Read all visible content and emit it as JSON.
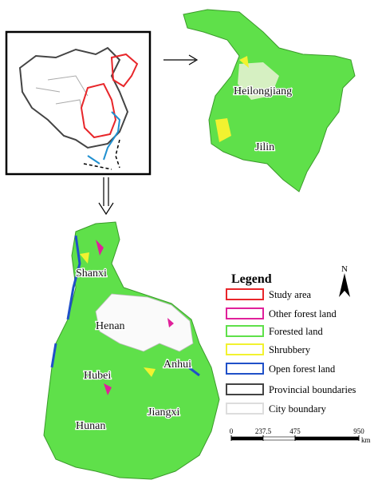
{
  "northeast_labels": [
    "Heilongjiang",
    "Jilin"
  ],
  "central_labels": [
    "Shanxi",
    "Henan",
    "Anhui",
    "Hubei",
    "Hunan",
    "Jiangxi"
  ],
  "legend": {
    "title": "Legend",
    "items": [
      {
        "label": "Study area",
        "color": "#e8262a"
      },
      {
        "label": "Other forest land",
        "color": "#e0209a"
      },
      {
        "label": "Forested land",
        "color": "#5fe04a"
      },
      {
        "label": "Shrubbery",
        "color": "#f2f230"
      },
      {
        "label": "Open forest land",
        "color": "#2050c8"
      },
      {
        "label": "Provincial boundaries",
        "color": "#444444"
      },
      {
        "label": "City boundary",
        "color": "#dddddd"
      }
    ]
  },
  "north_arrow": "N",
  "scale_bar": {
    "ticks": [
      0,
      237.5,
      475,
      950
    ],
    "unit": "km"
  }
}
